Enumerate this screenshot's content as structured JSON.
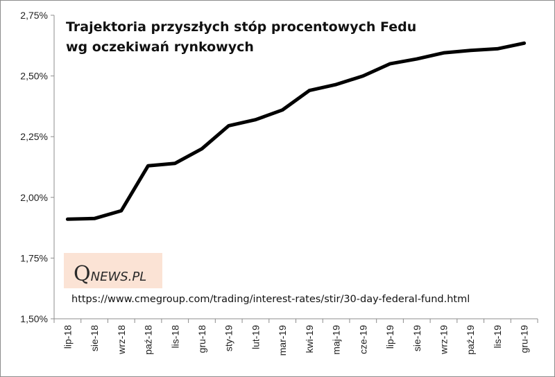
{
  "chart_data": {
    "type": "line",
    "title": [
      "Trajektoria  przyszłych stóp procentowych Fedu",
      "wg oczekiwań rynkowych"
    ],
    "categories": [
      "lip-18",
      "sie-18",
      "wrz-18",
      "paź-18",
      "lis-18",
      "gru-18",
      "sty-19",
      "lut-19",
      "mar-19",
      "kwi-19",
      "maj-19",
      "cze-19",
      "lip-19",
      "sie-19",
      "wrz-19",
      "paź-19",
      "lis-19",
      "gru-19"
    ],
    "values": [
      1.91,
      1.913,
      1.945,
      2.13,
      2.14,
      2.2,
      2.295,
      2.32,
      2.36,
      2.44,
      2.465,
      2.5,
      2.55,
      2.57,
      2.595,
      2.605,
      2.612,
      2.635
    ],
    "ylim": [
      1.5,
      2.75
    ],
    "yticks": [
      "1,50%",
      "1,75%",
      "2,00%",
      "2,25%",
      "2,50%",
      "2,75%"
    ],
    "ytick_values": [
      1.5,
      1.75,
      2.0,
      2.25,
      2.5,
      2.75
    ],
    "line_color": "#000000",
    "grid": false,
    "legend": "none"
  },
  "watermark": {
    "logo_q": "Q",
    "logo_rest": "NEWS.PL",
    "background": "#fbe3d5"
  },
  "source": "https://www.cmegroup.com/trading/interest-rates/stir/30-day-federal-fund.html"
}
